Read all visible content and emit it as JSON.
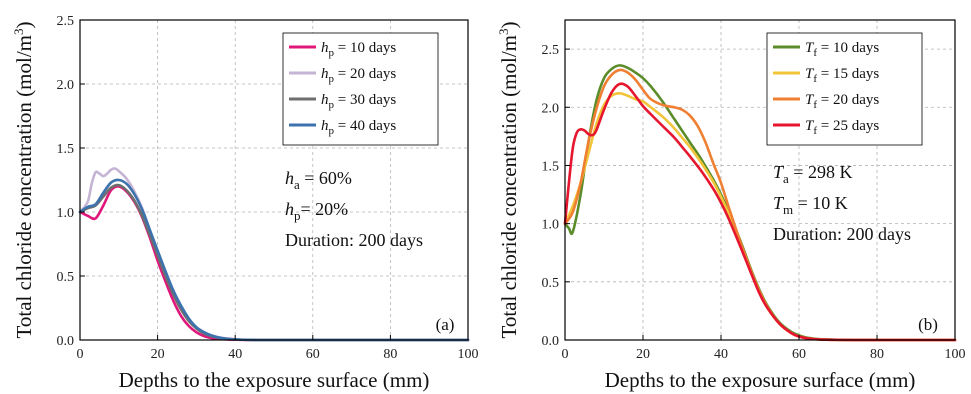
{
  "chart_data": [
    {
      "type": "line",
      "panel_label": "(a)",
      "xlabel": "Depths to the exposure surface (mm)",
      "ylabel": "Total chloride concentration (mol/m3)",
      "ylabel_main": "Total chloride concentration (mol/m",
      "ylabel_sup": "3",
      "ylabel_close": ")",
      "xlim": [
        0,
        100
      ],
      "ylim": [
        0,
        2.5
      ],
      "xticks": [
        "0",
        "20",
        "40",
        "60",
        "80",
        "100"
      ],
      "yticks": [
        "0.0",
        "0.5",
        "1.0",
        "1.5",
        "2.0",
        "2.5"
      ],
      "grid": true,
      "legend_position": "top-right",
      "series": [
        {
          "name_sym": "h",
          "name_sub": "p",
          "name_rest": " = 10 days",
          "color": "#e0177a",
          "x": [
            0,
            2,
            4,
            6,
            8,
            10,
            12,
            14,
            16,
            18,
            20,
            22,
            24,
            26,
            28,
            30,
            32,
            34,
            36,
            38,
            40,
            42,
            44,
            46,
            50,
            60,
            70,
            80,
            90,
            100
          ],
          "y": [
            1.0,
            0.97,
            0.95,
            1.05,
            1.17,
            1.2,
            1.16,
            1.08,
            0.96,
            0.8,
            0.62,
            0.46,
            0.31,
            0.19,
            0.11,
            0.06,
            0.03,
            0.015,
            0.008,
            0.004,
            0.002,
            0.001,
            0,
            0,
            0,
            0,
            0,
            0,
            0,
            0
          ]
        },
        {
          "name_sym": "h",
          "name_sub": "p",
          "name_rest": " = 20 days",
          "color": "#c6b4d4",
          "x": [
            0,
            2,
            3,
            4,
            5,
            6,
            7,
            8,
            9,
            10,
            12,
            14,
            16,
            18,
            20,
            22,
            24,
            26,
            28,
            30,
            32,
            34,
            36,
            38,
            40,
            42,
            44,
            46,
            50,
            60,
            70,
            80,
            90,
            100
          ],
          "y": [
            1.0,
            1.08,
            1.22,
            1.31,
            1.3,
            1.28,
            1.3,
            1.33,
            1.34,
            1.32,
            1.26,
            1.16,
            1.03,
            0.86,
            0.68,
            0.52,
            0.37,
            0.25,
            0.16,
            0.1,
            0.06,
            0.035,
            0.02,
            0.011,
            0.006,
            0.003,
            0.001,
            0,
            0,
            0,
            0,
            0,
            0,
            0
          ]
        },
        {
          "name_sym": "h",
          "name_sub": "p",
          "name_rest": " = 30 days",
          "color": "#6e6e6e",
          "x": [
            0,
            2,
            4,
            6,
            8,
            10,
            12,
            14,
            16,
            18,
            20,
            22,
            24,
            26,
            28,
            30,
            32,
            34,
            36,
            38,
            40,
            42,
            44,
            46,
            50,
            60,
            70,
            80,
            90,
            100
          ],
          "y": [
            1.0,
            1.03,
            1.05,
            1.12,
            1.19,
            1.21,
            1.17,
            1.09,
            0.97,
            0.82,
            0.66,
            0.5,
            0.36,
            0.24,
            0.15,
            0.09,
            0.05,
            0.028,
            0.015,
            0.008,
            0.004,
            0.002,
            0.001,
            0,
            0,
            0,
            0,
            0,
            0,
            0
          ]
        },
        {
          "name_sym": "h",
          "name_sub": "p",
          "name_rest": " = 40 days",
          "color": "#3c72ad",
          "x": [
            0,
            2,
            4,
            6,
            8,
            10,
            12,
            14,
            16,
            18,
            20,
            22,
            24,
            26,
            28,
            30,
            32,
            34,
            36,
            38,
            40,
            42,
            44,
            46,
            50,
            60,
            70,
            80,
            90,
            100
          ],
          "y": [
            1.0,
            1.04,
            1.06,
            1.15,
            1.23,
            1.25,
            1.22,
            1.14,
            1.02,
            0.86,
            0.7,
            0.54,
            0.39,
            0.27,
            0.17,
            0.1,
            0.06,
            0.034,
            0.018,
            0.009,
            0.005,
            0.002,
            0.001,
            0,
            0,
            0,
            0,
            0,
            0,
            0
          ]
        }
      ],
      "annotations": [
        {
          "sym": "h",
          "sub": "a",
          "rest": " = 60%"
        },
        {
          "sym": "h",
          "sub": "p",
          "rest": "=  20%"
        },
        {
          "sym": "",
          "sub": "",
          "rest": "Duration: 200 days"
        }
      ]
    },
    {
      "type": "line",
      "panel_label": "(b)",
      "xlabel": "Depths to the exposure surface (mm)",
      "ylabel": "Total chloride concentration (mol/m3)",
      "ylabel_main": "Total chloride concentration (mol/m",
      "ylabel_sup": "3",
      "ylabel_close": ")",
      "xlim": [
        0,
        100
      ],
      "ylim": [
        0,
        2.75
      ],
      "xticks": [
        "0",
        "20",
        "40",
        "60",
        "80",
        "100"
      ],
      "yticks": [
        "0.0",
        "0.5",
        "1.0",
        "1.5",
        "2.0",
        "2.5"
      ],
      "ytick_values": [
        0,
        0.5,
        1.0,
        1.5,
        2.0,
        2.5
      ],
      "grid": true,
      "legend_position": "top-right",
      "series": [
        {
          "name_sym": "T",
          "name_sub": "f",
          "name_rest": " = 10 days",
          "color": "#5b8c2a",
          "x": [
            0,
            1,
            2,
            4,
            6,
            8,
            10,
            12,
            14,
            16,
            18,
            20,
            22,
            25,
            28,
            30,
            32,
            35,
            38,
            40,
            42,
            45,
            48,
            50,
            52,
            55,
            58,
            60,
            62,
            65,
            70,
            75,
            80,
            90,
            100
          ],
          "y": [
            1.0,
            0.96,
            0.93,
            1.25,
            1.7,
            2.05,
            2.25,
            2.33,
            2.36,
            2.34,
            2.3,
            2.25,
            2.18,
            2.05,
            1.9,
            1.8,
            1.7,
            1.55,
            1.38,
            1.25,
            1.1,
            0.85,
            0.58,
            0.42,
            0.29,
            0.15,
            0.07,
            0.04,
            0.02,
            0.008,
            0.002,
            0,
            0,
            0,
            0
          ]
        },
        {
          "name_sym": "T",
          "name_sub": "f",
          "name_rest": " = 15 days",
          "color": "#f2c43a",
          "x": [
            0,
            2,
            4,
            6,
            8,
            10,
            12,
            14,
            16,
            18,
            20,
            22,
            25,
            28,
            30,
            32,
            35,
            38,
            40,
            42,
            45,
            48,
            50,
            52,
            55,
            58,
            60,
            62,
            65,
            70,
            75,
            80,
            90,
            100
          ],
          "y": [
            1.0,
            1.15,
            1.35,
            1.6,
            1.85,
            2.02,
            2.1,
            2.12,
            2.1,
            2.07,
            2.05,
            2.0,
            1.92,
            1.82,
            1.74,
            1.66,
            1.52,
            1.36,
            1.23,
            1.08,
            0.83,
            0.56,
            0.4,
            0.27,
            0.14,
            0.06,
            0.03,
            0.015,
            0.006,
            0.001,
            0,
            0,
            0,
            0
          ]
        },
        {
          "name_sym": "T",
          "name_sub": "f",
          "name_rest": " = 20 days",
          "color": "#ef8033",
          "x": [
            0,
            2,
            4,
            6,
            8,
            10,
            12,
            14,
            16,
            18,
            20,
            22,
            25,
            28,
            30,
            32,
            34,
            36,
            38,
            40,
            42,
            45,
            48,
            50,
            52,
            55,
            58,
            60,
            62,
            65,
            70,
            75,
            80,
            90,
            100
          ],
          "y": [
            1.0,
            1.1,
            1.35,
            1.7,
            1.98,
            2.18,
            2.28,
            2.32,
            2.3,
            2.24,
            2.15,
            2.07,
            2.02,
            2.0,
            1.98,
            1.93,
            1.84,
            1.7,
            1.52,
            1.35,
            1.14,
            0.84,
            0.57,
            0.41,
            0.28,
            0.14,
            0.06,
            0.03,
            0.015,
            0.005,
            0.001,
            0,
            0,
            0,
            0
          ]
        },
        {
          "name_sym": "T",
          "name_sub": "f",
          "name_rest": " = 25 days",
          "color": "#e5162e",
          "x": [
            0,
            1,
            2,
            3,
            4,
            5,
            6,
            7,
            8,
            10,
            12,
            14,
            16,
            18,
            20,
            22,
            25,
            28,
            30,
            32,
            35,
            38,
            40,
            42,
            45,
            48,
            50,
            52,
            55,
            58,
            60,
            62,
            65,
            70,
            75,
            80,
            90,
            100
          ],
          "y": [
            1.0,
            1.35,
            1.65,
            1.78,
            1.81,
            1.8,
            1.77,
            1.76,
            1.8,
            1.98,
            2.13,
            2.2,
            2.18,
            2.1,
            2.01,
            1.94,
            1.84,
            1.74,
            1.66,
            1.58,
            1.45,
            1.3,
            1.18,
            1.04,
            0.8,
            0.55,
            0.39,
            0.27,
            0.14,
            0.06,
            0.03,
            0.015,
            0.005,
            0.001,
            0,
            0,
            0,
            0
          ]
        }
      ],
      "annotations": [
        {
          "sym": "T",
          "sub": "a",
          "rest": " = 298 K"
        },
        {
          "sym": "T",
          "sub": "m",
          "rest": " = 10 K"
        },
        {
          "sym": "",
          "sub": "",
          "rest": "Duration: 200 days"
        }
      ]
    }
  ]
}
